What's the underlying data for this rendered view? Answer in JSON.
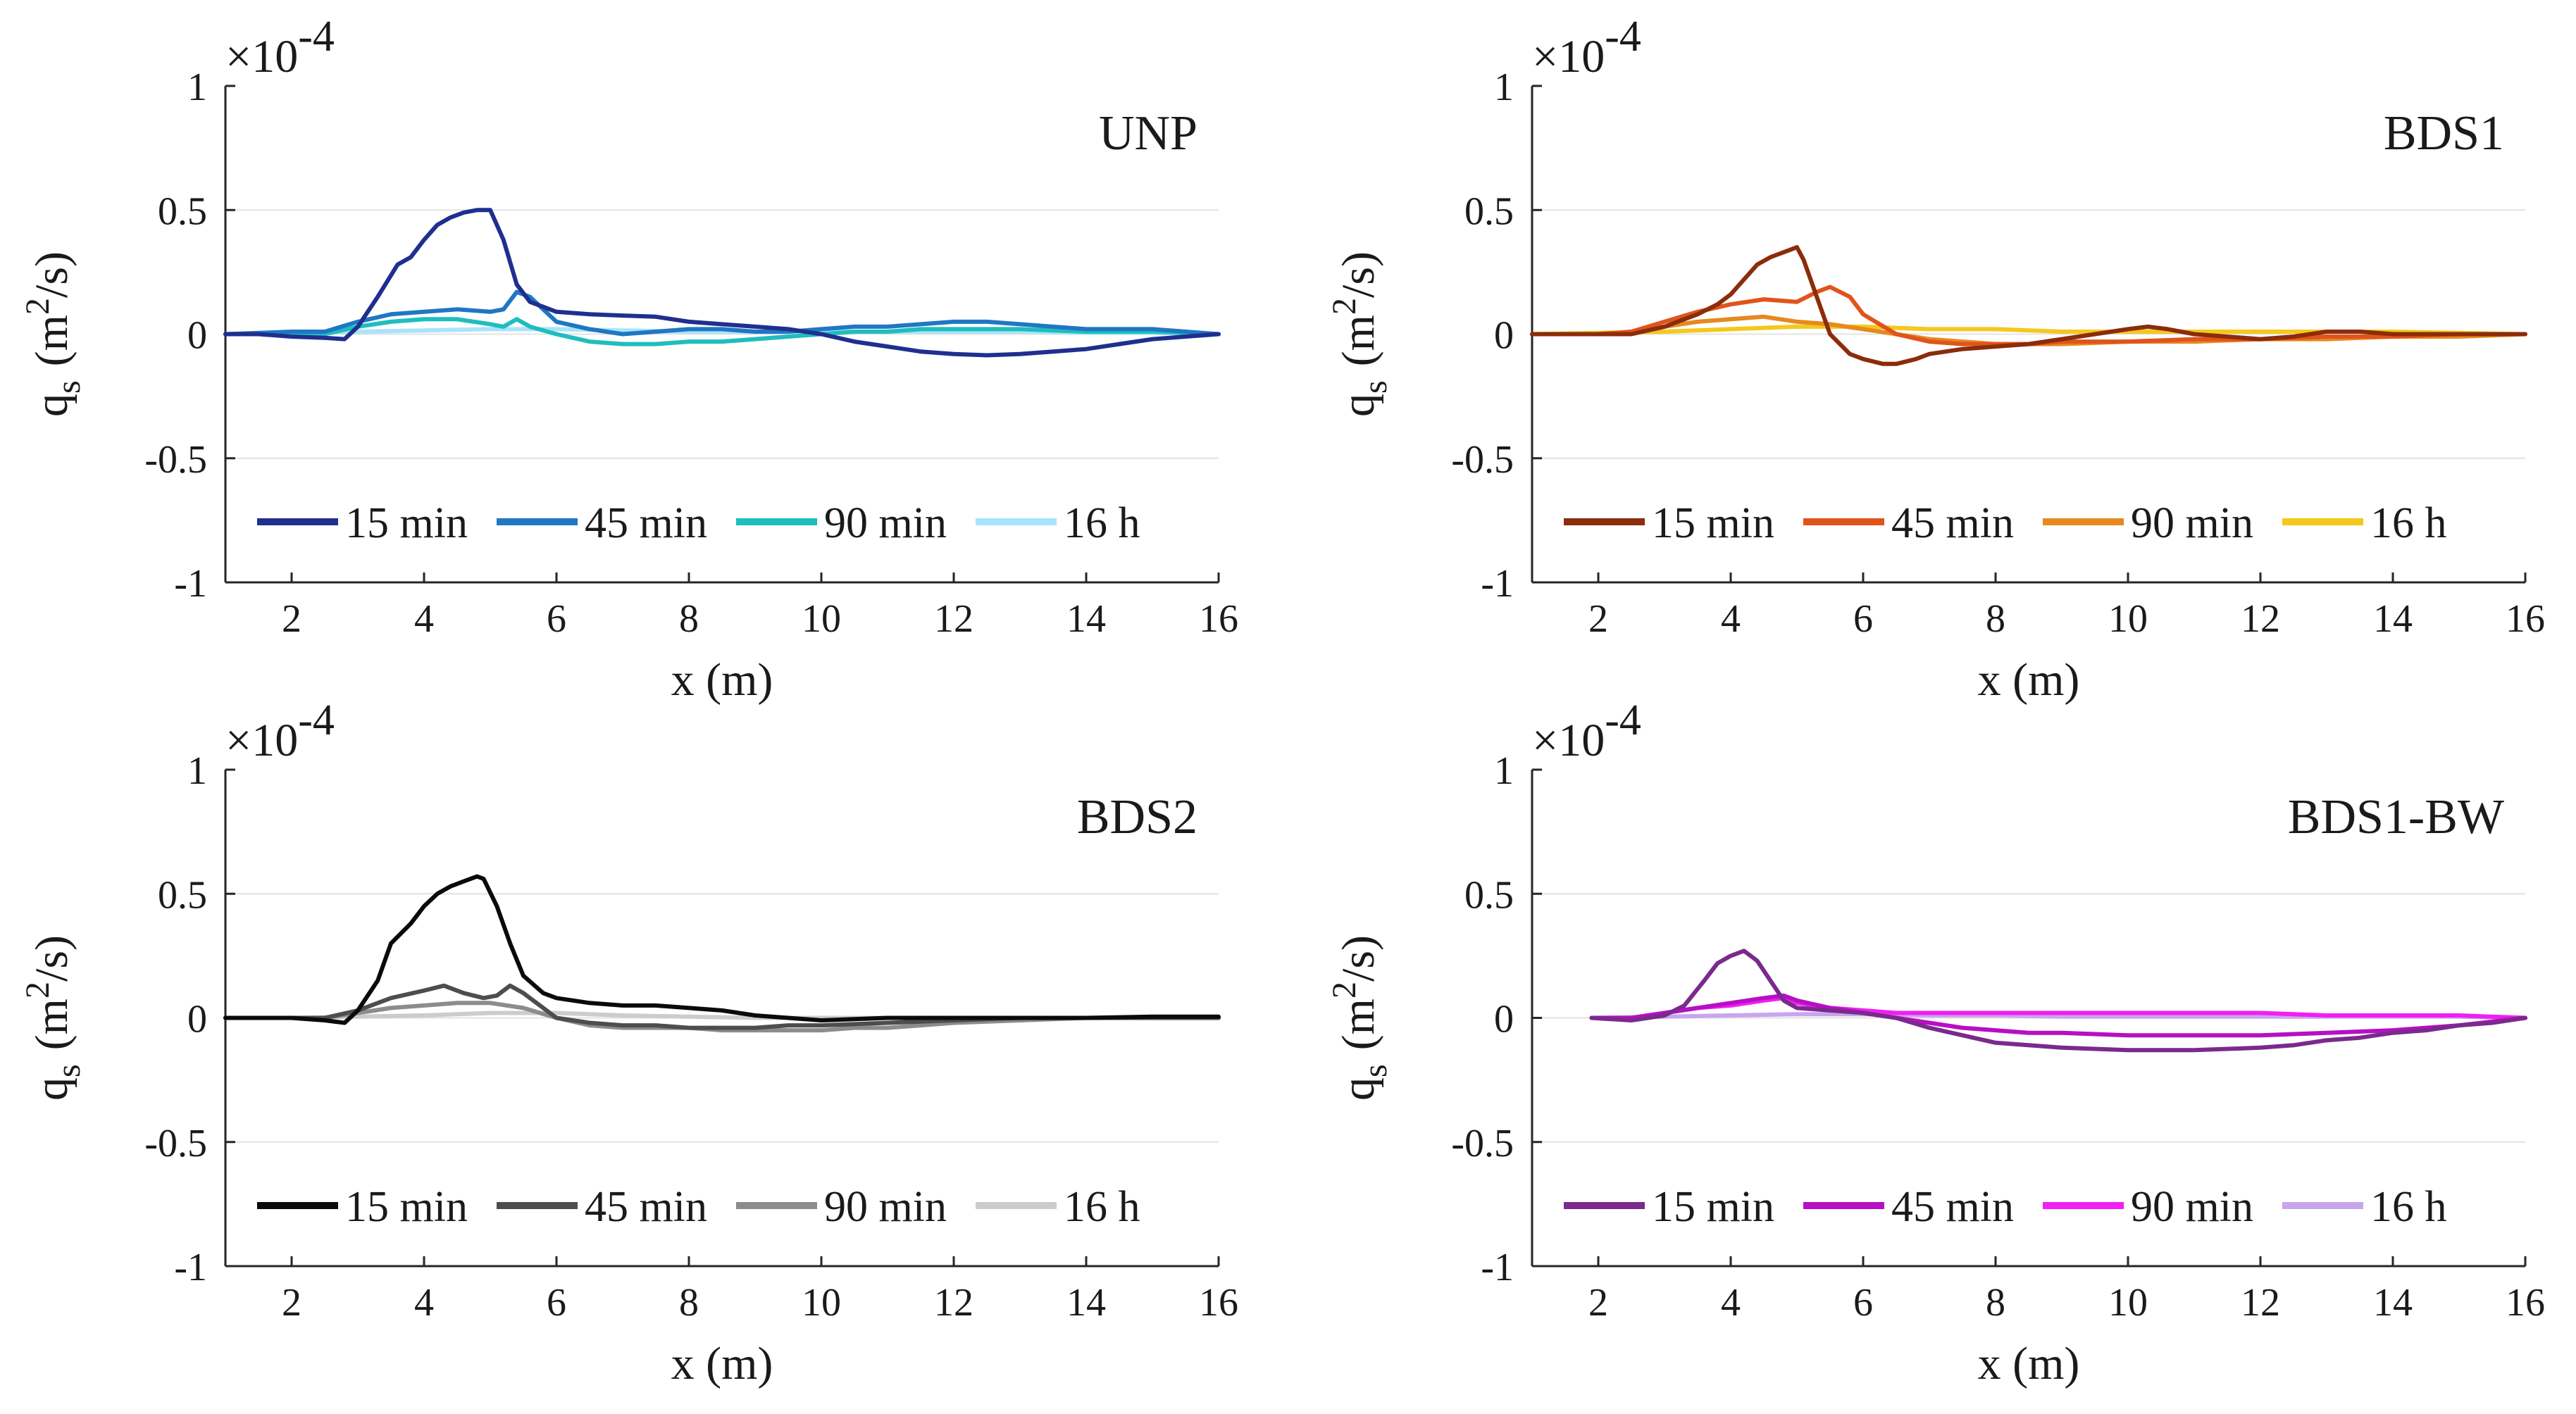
{
  "chart_data": [
    {
      "type": "line",
      "title": "UNP",
      "xlabel": "x (m)",
      "ylabel_main": "q",
      "ylabel_sub": "s",
      "ylabel_unit_open": "(m",
      "ylabel_unit_exp": "2",
      "ylabel_unit_close": "/s)",
      "multiplier_base": "×10",
      "multiplier_exp": "-4",
      "xlim": [
        1,
        16
      ],
      "ylim": [
        -1,
        1
      ],
      "xticks": [
        2,
        4,
        6,
        8,
        10,
        12,
        14,
        16
      ],
      "yticks": [
        1,
        0.5,
        0,
        -0.5,
        -1
      ],
      "ytick_labels": [
        "1",
        "0.5",
        "0",
        "-0.5",
        "-1"
      ],
      "series": [
        {
          "name": "15 min",
          "color": "#1f2f8f",
          "x": [
            1,
            1.5,
            2,
            2.5,
            2.8,
            3,
            3.3,
            3.6,
            3.8,
            4,
            4.2,
            4.4,
            4.6,
            4.8,
            5,
            5.2,
            5.4,
            5.6,
            5.8,
            6,
            6.5,
            7,
            7.5,
            8,
            8.5,
            9,
            9.5,
            10,
            10.5,
            11,
            11.5,
            12,
            12.5,
            13,
            13.5,
            14,
            14.5,
            15,
            15.5,
            16
          ],
          "y": [
            0,
            0,
            -0.01,
            -0.015,
            -0.02,
            0.03,
            0.15,
            0.28,
            0.31,
            0.38,
            0.44,
            0.47,
            0.49,
            0.5,
            0.5,
            0.38,
            0.2,
            0.13,
            0.11,
            0.09,
            0.08,
            0.075,
            0.07,
            0.05,
            0.04,
            0.03,
            0.02,
            0,
            -0.03,
            -0.05,
            -0.07,
            -0.08,
            -0.085,
            -0.08,
            -0.07,
            -0.06,
            -0.04,
            -0.02,
            -0.01,
            0
          ]
        },
        {
          "name": "45 min",
          "color": "#1f77c4",
          "x": [
            1,
            2,
            2.5,
            3,
            3.5,
            4,
            4.5,
            5,
            5.2,
            5.4,
            5.6,
            5.8,
            6,
            6.5,
            7,
            7.5,
            8,
            8.5,
            9,
            9.5,
            10,
            10.5,
            11,
            11.5,
            12,
            12.5,
            13,
            14,
            15,
            16
          ],
          "y": [
            0,
            0.01,
            0.01,
            0.05,
            0.08,
            0.09,
            0.1,
            0.09,
            0.1,
            0.17,
            0.15,
            0.1,
            0.05,
            0.02,
            0,
            0.01,
            0.02,
            0.02,
            0.01,
            0.01,
            0.02,
            0.03,
            0.03,
            0.04,
            0.05,
            0.05,
            0.04,
            0.02,
            0.02,
            0
          ]
        },
        {
          "name": "90 min",
          "color": "#1fbdbd",
          "x": [
            1,
            2,
            2.5,
            3,
            3.5,
            4,
            4.5,
            5,
            5.2,
            5.4,
            5.6,
            6,
            6.5,
            7,
            7.5,
            8,
            8.5,
            9,
            9.5,
            10,
            10.5,
            11,
            11.5,
            12,
            12.5,
            13,
            14,
            15,
            16
          ],
          "y": [
            0,
            0,
            0,
            0.03,
            0.05,
            0.06,
            0.06,
            0.04,
            0.03,
            0.06,
            0.03,
            0,
            -0.03,
            -0.04,
            -0.04,
            -0.03,
            -0.03,
            -0.02,
            -0.01,
            0,
            0.01,
            0.01,
            0.02,
            0.02,
            0.02,
            0.02,
            0.01,
            0.01,
            0
          ]
        },
        {
          "name": "16 h",
          "color": "#a8e4fb",
          "x": [
            1,
            2,
            3,
            4,
            5,
            6,
            7,
            8,
            9,
            10,
            11,
            12,
            13,
            14,
            15,
            16
          ],
          "y": [
            0,
            0.005,
            0.01,
            0.015,
            0.02,
            0.02,
            0.015,
            0.01,
            0.01,
            0.01,
            0.01,
            0.01,
            0.01,
            0.005,
            0.005,
            0
          ]
        }
      ]
    },
    {
      "type": "line",
      "title": "BDS1",
      "xlabel": "x (m)",
      "ylabel_main": "q",
      "ylabel_sub": "s",
      "ylabel_unit_open": "(m",
      "ylabel_unit_exp": "2",
      "ylabel_unit_close": "/s)",
      "multiplier_base": "×10",
      "multiplier_exp": "-4",
      "xlim": [
        1,
        16
      ],
      "ylim": [
        -1,
        1
      ],
      "xticks": [
        2,
        4,
        6,
        8,
        10,
        12,
        14,
        16
      ],
      "yticks": [
        1,
        0.5,
        0,
        -0.5,
        -1
      ],
      "ytick_labels": [
        "1",
        "0.5",
        "0",
        "-0.5",
        "-1"
      ],
      "series": [
        {
          "name": "15 min",
          "color": "#8b2c0a",
          "x": [
            1,
            2,
            2.5,
            3,
            3.5,
            3.8,
            4,
            4.2,
            4.4,
            4.6,
            4.8,
            5,
            5.1,
            5.3,
            5.5,
            5.8,
            6,
            6.3,
            6.5,
            6.8,
            7,
            7.5,
            8,
            8.5,
            9,
            9.5,
            10,
            10.3,
            10.6,
            11,
            11.5,
            12,
            12.5,
            13,
            13.5,
            14,
            15,
            16
          ],
          "y": [
            0,
            0,
            0,
            0.03,
            0.08,
            0.12,
            0.16,
            0.22,
            0.28,
            0.31,
            0.33,
            0.35,
            0.3,
            0.15,
            0,
            -0.08,
            -0.1,
            -0.12,
            -0.12,
            -0.1,
            -0.08,
            -0.06,
            -0.05,
            -0.04,
            -0.02,
            0,
            0.02,
            0.03,
            0.02,
            0,
            -0.01,
            -0.02,
            -0.01,
            0.01,
            0.01,
            0,
            0,
            0
          ]
        },
        {
          "name": "45 min",
          "color": "#e0541b",
          "x": [
            1,
            2,
            2.5,
            3,
            3.5,
            4,
            4.5,
            5,
            5.3,
            5.5,
            5.8,
            6,
            6.5,
            7,
            7.5,
            8,
            8.5,
            9,
            9.5,
            10,
            11,
            12,
            13,
            14,
            15,
            16
          ],
          "y": [
            0,
            0,
            0.01,
            0.05,
            0.09,
            0.12,
            0.14,
            0.13,
            0.17,
            0.19,
            0.15,
            0.08,
            0,
            -0.03,
            -0.04,
            -0.04,
            -0.04,
            -0.03,
            -0.03,
            -0.03,
            -0.02,
            -0.02,
            -0.01,
            -0.01,
            0,
            0
          ]
        },
        {
          "name": "90 min",
          "color": "#e6891f",
          "x": [
            1,
            2,
            2.5,
            3,
            3.5,
            4,
            4.5,
            5,
            5.5,
            6,
            6.5,
            7,
            7.5,
            8,
            8.5,
            9,
            10,
            11,
            12,
            13,
            14,
            15,
            16
          ],
          "y": [
            0,
            0,
            0.01,
            0.03,
            0.05,
            0.06,
            0.07,
            0.05,
            0.04,
            0.02,
            0,
            -0.02,
            -0.03,
            -0.04,
            -0.04,
            -0.04,
            -0.03,
            -0.03,
            -0.02,
            -0.02,
            -0.01,
            -0.01,
            0
          ]
        },
        {
          "name": "16 h",
          "color": "#f4c81c",
          "x": [
            1,
            2,
            3,
            4,
            5,
            6,
            7,
            8,
            9,
            10,
            11,
            12,
            13,
            14,
            15,
            16
          ],
          "y": [
            0,
            0.005,
            0.01,
            0.02,
            0.03,
            0.03,
            0.02,
            0.02,
            0.01,
            0.01,
            0.01,
            0.01,
            0.01,
            0.01,
            0.005,
            0
          ]
        }
      ]
    },
    {
      "type": "line",
      "title": "BDS2",
      "xlabel": "x (m)",
      "ylabel_main": "q",
      "ylabel_sub": "s",
      "ylabel_unit_open": "(m",
      "ylabel_unit_exp": "2",
      "ylabel_unit_close": "/s)",
      "multiplier_base": "×10",
      "multiplier_exp": "-4",
      "xlim": [
        1,
        16
      ],
      "ylim": [
        -1,
        1
      ],
      "xticks": [
        2,
        4,
        6,
        8,
        10,
        12,
        14,
        16
      ],
      "yticks": [
        1,
        0.5,
        0,
        -0.5,
        -1
      ],
      "ytick_labels": [
        "1",
        "0.5",
        "0",
        "-0.5",
        "-1"
      ],
      "series": [
        {
          "name": "15 min",
          "color": "#0a0a0a",
          "x": [
            1,
            2,
            2.5,
            2.8,
            3,
            3.3,
            3.5,
            3.8,
            4,
            4.2,
            4.4,
            4.6,
            4.8,
            4.9,
            5.1,
            5.3,
            5.5,
            5.8,
            6,
            6.5,
            7,
            7.5,
            8,
            8.5,
            9,
            9.5,
            10,
            11,
            12,
            13,
            14,
            15,
            16
          ],
          "y": [
            0,
            0,
            -0.01,
            -0.02,
            0.03,
            0.15,
            0.3,
            0.38,
            0.45,
            0.5,
            0.53,
            0.55,
            0.57,
            0.56,
            0.45,
            0.3,
            0.17,
            0.1,
            0.08,
            0.06,
            0.05,
            0.05,
            0.04,
            0.03,
            0.01,
            0,
            -0.01,
            0,
            0,
            0,
            0,
            0.005,
            0.005
          ]
        },
        {
          "name": "45 min",
          "color": "#4d4d4d",
          "x": [
            1,
            2,
            2.5,
            3,
            3.5,
            4,
            4.3,
            4.6,
            4.9,
            5.1,
            5.3,
            5.5,
            5.8,
            6,
            6.5,
            7,
            7.5,
            8,
            8.5,
            9,
            9.5,
            10,
            11,
            12,
            13,
            14,
            15,
            16
          ],
          "y": [
            0,
            0,
            0,
            0.03,
            0.08,
            0.11,
            0.13,
            0.1,
            0.08,
            0.09,
            0.13,
            0.1,
            0.04,
            0,
            -0.02,
            -0.03,
            -0.03,
            -0.04,
            -0.04,
            -0.04,
            -0.03,
            -0.03,
            -0.02,
            -0.01,
            0,
            0,
            0,
            0
          ]
        },
        {
          "name": "90 min",
          "color": "#8c8c8c",
          "x": [
            1,
            2,
            2.5,
            3,
            3.5,
            4,
            4.5,
            5,
            5.5,
            6,
            6.5,
            7,
            7.5,
            8,
            8.5,
            9,
            9.5,
            10,
            10.5,
            11,
            11.5,
            12,
            13,
            14,
            15,
            16
          ],
          "y": [
            0,
            0,
            0,
            0.02,
            0.04,
            0.05,
            0.06,
            0.06,
            0.04,
            0,
            -0.03,
            -0.04,
            -0.04,
            -0.04,
            -0.05,
            -0.05,
            -0.05,
            -0.05,
            -0.04,
            -0.04,
            -0.03,
            -0.02,
            -0.01,
            0,
            0,
            0
          ]
        },
        {
          "name": "16 h",
          "color": "#cccccc",
          "x": [
            1,
            2,
            3,
            4,
            5,
            6,
            7,
            8,
            9,
            10,
            11,
            12,
            13,
            14,
            15,
            16
          ],
          "y": [
            0,
            0,
            0.005,
            0.01,
            0.02,
            0.02,
            0.01,
            0.005,
            0,
            0,
            0,
            0,
            0,
            0,
            0,
            0
          ]
        }
      ]
    },
    {
      "type": "line",
      "title": "BDS1-BW",
      "xlabel": "x (m)",
      "ylabel_main": "q",
      "ylabel_sub": "s",
      "ylabel_unit_open": "(m",
      "ylabel_unit_exp": "2",
      "ylabel_unit_close": "/s)",
      "multiplier_base": "×10",
      "multiplier_exp": "-4",
      "xlim": [
        1,
        16
      ],
      "ylim": [
        -1,
        1
      ],
      "xticks": [
        2,
        4,
        6,
        8,
        10,
        12,
        14,
        16
      ],
      "yticks": [
        1,
        0.5,
        0,
        -0.5,
        -1
      ],
      "ytick_labels": [
        "1",
        "0.5",
        "0",
        "-0.5",
        "-1"
      ],
      "series": [
        {
          "name": "15 min",
          "color": "#7b2a8c",
          "x": [
            1.9,
            2.5,
            3,
            3.3,
            3.6,
            3.8,
            4,
            4.2,
            4.4,
            4.6,
            4.8,
            5,
            5.5,
            6,
            6.5,
            7,
            7.5,
            8,
            8.5,
            9,
            10,
            11,
            12,
            12.5,
            13,
            13.5,
            14,
            14.5,
            15,
            15.5,
            16
          ],
          "y": [
            0,
            -0.01,
            0.01,
            0.05,
            0.15,
            0.22,
            0.25,
            0.27,
            0.23,
            0.15,
            0.07,
            0.04,
            0.03,
            0.02,
            0,
            -0.04,
            -0.07,
            -0.1,
            -0.11,
            -0.12,
            -0.13,
            -0.13,
            -0.12,
            -0.11,
            -0.09,
            -0.08,
            -0.06,
            -0.05,
            -0.03,
            -0.02,
            0
          ]
        },
        {
          "name": "45 min",
          "color": "#b70fc4",
          "x": [
            1.9,
            2.5,
            3,
            3.5,
            4,
            4.5,
            4.8,
            5,
            5.5,
            6,
            6.5,
            7,
            7.5,
            8,
            8.5,
            9,
            10,
            11,
            12,
            13,
            14,
            15,
            16
          ],
          "y": [
            0,
            0,
            0.02,
            0.04,
            0.06,
            0.08,
            0.09,
            0.07,
            0.04,
            0.02,
            0,
            -0.02,
            -0.04,
            -0.05,
            -0.06,
            -0.06,
            -0.07,
            -0.07,
            -0.07,
            -0.06,
            -0.05,
            -0.03,
            0
          ]
        },
        {
          "name": "90 min",
          "color": "#f21ef2",
          "x": [
            1.9,
            2.5,
            3,
            3.5,
            4,
            4.5,
            4.8,
            5,
            5.5,
            6,
            6.5,
            7,
            8,
            9,
            10,
            11,
            12,
            13,
            14,
            15,
            16
          ],
          "y": [
            0,
            0,
            0.02,
            0.04,
            0.05,
            0.07,
            0.08,
            0.06,
            0.04,
            0.03,
            0.02,
            0.02,
            0.02,
            0.02,
            0.02,
            0.02,
            0.02,
            0.01,
            0.01,
            0.01,
            0
          ]
        },
        {
          "name": "16 h",
          "color": "#c9a5ee",
          "x": [
            1.9,
            3,
            4,
            5,
            6,
            7,
            8,
            9,
            10,
            11,
            12,
            13,
            14,
            15,
            16
          ],
          "y": [
            0,
            0.005,
            0.01,
            0.015,
            0.015,
            0.01,
            0.01,
            0.005,
            0.005,
            0.005,
            0.005,
            0.005,
            0.005,
            0.005,
            0
          ]
        }
      ]
    }
  ]
}
